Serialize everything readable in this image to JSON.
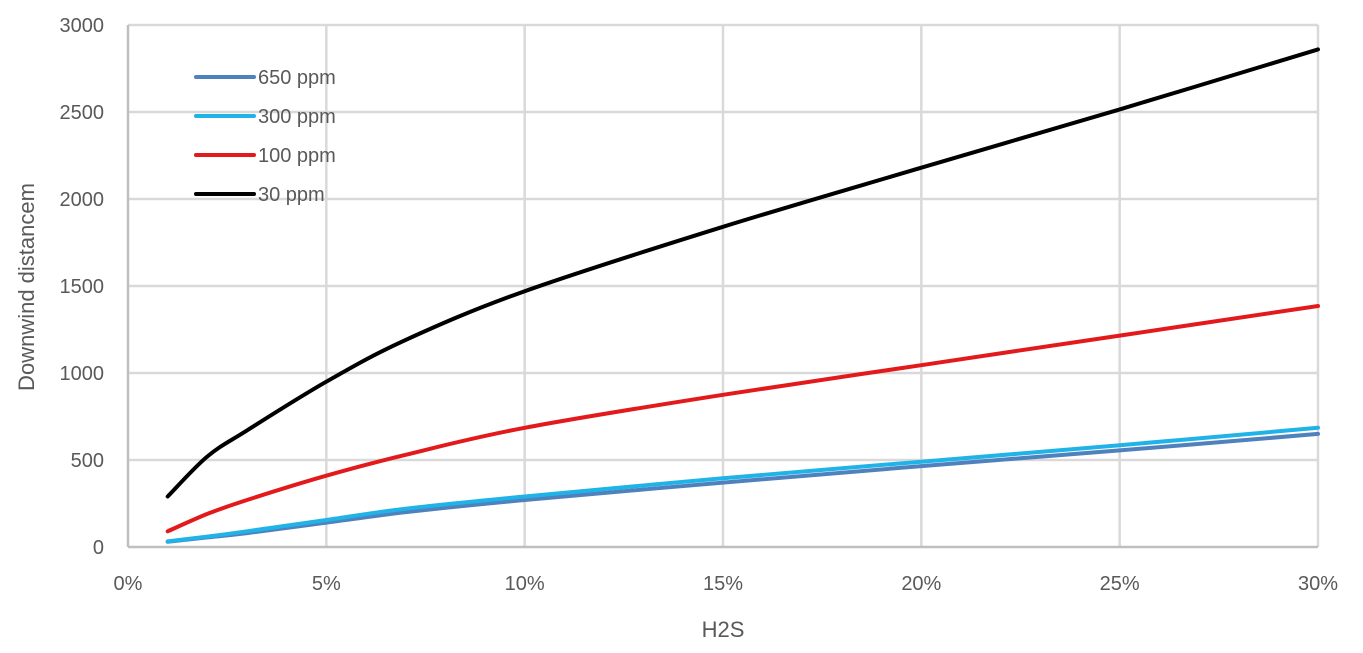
{
  "chart_data": {
    "type": "line",
    "title": "",
    "xlabel": "H2S",
    "ylabel": "Downwind distancem",
    "xlim": [
      0,
      0.3
    ],
    "ylim": [
      0,
      3000
    ],
    "x_ticks": [
      0,
      0.05,
      0.1,
      0.15,
      0.2,
      0.25,
      0.3
    ],
    "x_tick_labels": [
      "0%",
      "5%",
      "10%",
      "15%",
      "20%",
      "25%",
      "30%"
    ],
    "y_ticks": [
      0,
      500,
      1000,
      1500,
      2000,
      2500,
      3000
    ],
    "y_tick_labels": [
      "0",
      "500",
      "1000",
      "1500",
      "2000",
      "2500",
      "3000"
    ],
    "grid": true,
    "legend_position": "top-left",
    "x": [
      0.01,
      0.02,
      0.03,
      0.05,
      0.07,
      0.1,
      0.15,
      0.2,
      0.25,
      0.3
    ],
    "series": [
      {
        "name": "650 ppm",
        "color": "#4f81bd",
        "values": [
          30,
          55,
          80,
          140,
          200,
          270,
          370,
          465,
          555,
          650
        ]
      },
      {
        "name": "300 ppm",
        "color": "#1fb3e8",
        "values": [
          32,
          60,
          90,
          155,
          220,
          290,
          395,
          490,
          585,
          685
        ]
      },
      {
        "name": "100 ppm",
        "color": "#e31a1c",
        "values": [
          90,
          190,
          270,
          410,
          530,
          685,
          875,
          1045,
          1215,
          1385
        ]
      },
      {
        "name": "30 ppm",
        "color": "#000000",
        "values": [
          290,
          520,
          670,
          950,
          1190,
          1470,
          1840,
          2180,
          2515,
          2860
        ]
      }
    ]
  }
}
